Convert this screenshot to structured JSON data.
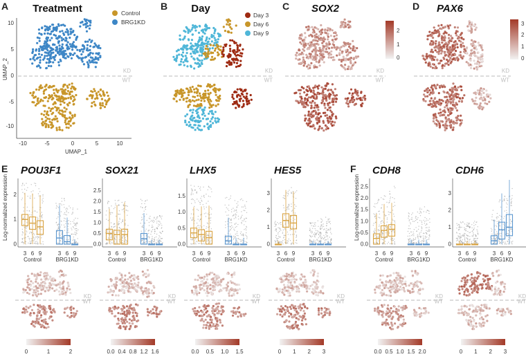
{
  "colors": {
    "control": "#c8962a",
    "brg1kd": "#3d86c6",
    "day3": "#9e2a12",
    "day6": "#c8962a",
    "day9": "#4fb6d8",
    "expr_low": "#eeeeee",
    "expr_high": "#a33a28",
    "box_control": "#d9a443",
    "box_kd": "#5c97cf",
    "dashed": "#c6c6c6"
  },
  "panels": {
    "A": {
      "label": "A",
      "title": "Treatment",
      "xlabel": "UMAP_1",
      "ylabel": "UMAP_2",
      "xticks": [
        "-10",
        "-5",
        "0",
        "5",
        "10"
      ],
      "yticks": [
        "10",
        "5",
        "0",
        "-5",
        "-10"
      ],
      "legend": [
        "Control",
        "BRG1KD"
      ]
    },
    "B": {
      "label": "B",
      "title": "Day",
      "legend": [
        "Day 3",
        "Day 6",
        "Day 9"
      ]
    },
    "C": {
      "label": "C",
      "gene": "SOX2",
      "scale": [
        "2",
        "1",
        "0"
      ]
    },
    "D": {
      "label": "D",
      "gene": "PAX6",
      "scale": [
        "3",
        "2",
        "1",
        "0"
      ]
    },
    "E": {
      "label": "E",
      "ylabel": "Log-normalized expression"
    },
    "F": {
      "label": "F",
      "ylabel": "Log-normalized expression"
    }
  },
  "split_labels": {
    "kd": "KD",
    "wt": "WT"
  },
  "chart_data": [
    {
      "type": "box",
      "gene": "POU3F1",
      "panel": "E",
      "groups": [
        "Control",
        "BRG1KD"
      ],
      "days": [
        "3",
        "6",
        "9"
      ],
      "yticks": [
        "0",
        "1",
        "2"
      ],
      "ylim": [
        0,
        2.6
      ],
      "control": [
        {
          "q1": 0.75,
          "median": 1.0,
          "q3": 1.2
        },
        {
          "q1": 0.6,
          "median": 0.85,
          "q3": 1.1
        },
        {
          "q1": 0.4,
          "median": 0.7,
          "q3": 0.95
        }
      ],
      "brg1kd": [
        {
          "q1": 0.0,
          "median": 0.25,
          "q3": 0.55
        },
        {
          "q1": 0.0,
          "median": 0.1,
          "q3": 0.35
        },
        {
          "q1": 0.0,
          "median": 0.0,
          "q3": 0.0
        }
      ],
      "colorbar": [
        "0",
        "1",
        "2"
      ]
    },
    {
      "type": "box",
      "gene": "SOX21",
      "panel": "E",
      "groups": [
        "Control",
        "BRG1KD"
      ],
      "days": [
        "3",
        "6",
        "9"
      ],
      "yticks": [
        "0.0",
        "0.5",
        "1.0",
        "1.5",
        "2.0",
        "2.5"
      ],
      "ylim": [
        0,
        3.0
      ],
      "control": [
        {
          "q1": 0.2,
          "median": 0.5,
          "q3": 0.7
        },
        {
          "q1": 0.0,
          "median": 0.45,
          "q3": 0.65
        },
        {
          "q1": 0.0,
          "median": 0.45,
          "q3": 0.7
        }
      ],
      "brg1kd": [
        {
          "q1": 0.0,
          "median": 0.25,
          "q3": 0.5
        },
        {
          "q1": 0.0,
          "median": 0.0,
          "q3": 0.0
        },
        {
          "q1": 0.0,
          "median": 0.0,
          "q3": 0.0
        }
      ],
      "colorbar": [
        "0.0",
        "0.4",
        "0.8",
        "1.2",
        "1.6"
      ]
    },
    {
      "type": "box",
      "gene": "LHX5",
      "panel": "E",
      "groups": [
        "Control",
        "BRG1KD"
      ],
      "days": [
        "3",
        "6",
        "9"
      ],
      "yticks": [
        "0.0",
        "0.5",
        "1.0",
        "1.5"
      ],
      "ylim": [
        0,
        2.0
      ],
      "control": [
        {
          "q1": 0.2,
          "median": 0.35,
          "q3": 0.5
        },
        {
          "q1": 0.1,
          "median": 0.3,
          "q3": 0.45
        },
        {
          "q1": 0.0,
          "median": 0.2,
          "q3": 0.4
        }
      ],
      "brg1kd": [
        {
          "q1": 0.0,
          "median": 0.1,
          "q3": 0.25
        },
        {
          "q1": 0.0,
          "median": 0.0,
          "q3": 0.0
        },
        {
          "q1": 0.0,
          "median": 0.0,
          "q3": 0.0
        }
      ],
      "colorbar": [
        "0.0",
        "0.5",
        "1.0",
        "1.5"
      ]
    },
    {
      "type": "box",
      "gene": "HES5",
      "panel": "E",
      "groups": [
        "Control",
        "BRG1KD"
      ],
      "days": [
        "3",
        "6",
        "9"
      ],
      "yticks": [
        "0",
        "1",
        "2",
        "3"
      ],
      "ylim": [
        0,
        3.8
      ],
      "control": [
        {
          "q1": 0.0,
          "median": 0.0,
          "q3": 0.0
        },
        {
          "q1": 1.0,
          "median": 1.4,
          "q3": 1.8
        },
        {
          "q1": 0.9,
          "median": 1.25,
          "q3": 1.7
        }
      ],
      "brg1kd": [
        {
          "q1": 0.0,
          "median": 0.0,
          "q3": 0.0
        },
        {
          "q1": 0.0,
          "median": 0.0,
          "q3": 0.0
        },
        {
          "q1": 0.0,
          "median": 0.0,
          "q3": 0.0
        }
      ],
      "colorbar": [
        "0",
        "1",
        "2",
        "3"
      ]
    },
    {
      "type": "box",
      "gene": "CDH8",
      "panel": "F",
      "groups": [
        "Control",
        "BRG1KD"
      ],
      "days": [
        "3",
        "6",
        "9"
      ],
      "yticks": [
        "0.0",
        "0.5",
        "1.0",
        "1.5",
        "2.0",
        "2.5"
      ],
      "ylim": [
        0,
        2.8
      ],
      "control": [
        {
          "q1": 0.0,
          "median": 0.25,
          "q3": 0.45
        },
        {
          "q1": 0.3,
          "median": 0.6,
          "q3": 0.8
        },
        {
          "q1": 0.35,
          "median": 0.65,
          "q3": 0.85
        }
      ],
      "brg1kd": [
        {
          "q1": 0.0,
          "median": 0.0,
          "q3": 0.0
        },
        {
          "q1": 0.0,
          "median": 0.0,
          "q3": 0.0
        },
        {
          "q1": 0.0,
          "median": 0.0,
          "q3": 0.0
        }
      ],
      "colorbar": [
        "0.0",
        "0.5",
        "1.0",
        "1.5",
        "2.0"
      ]
    },
    {
      "type": "box",
      "gene": "CDH6",
      "panel": "F",
      "groups": [
        "Control",
        "BRG1KD"
      ],
      "days": [
        "3",
        "6",
        "9"
      ],
      "yticks": [
        "0",
        "1",
        "2",
        "3"
      ],
      "ylim": [
        0,
        3.8
      ],
      "control": [
        {
          "q1": 0.0,
          "median": 0.0,
          "q3": 0.0
        },
        {
          "q1": 0.0,
          "median": 0.0,
          "q3": 0.0
        },
        {
          "q1": 0.0,
          "median": 0.0,
          "q3": 0.0
        }
      ],
      "brg1kd": [
        {
          "q1": 0.0,
          "median": 0.2,
          "q3": 0.5
        },
        {
          "q1": 0.3,
          "median": 0.85,
          "q3": 1.3
        },
        {
          "q1": 0.5,
          "median": 1.0,
          "q3": 1.75
        }
      ],
      "colorbar": [
        "0",
        "1",
        "2",
        "3"
      ]
    }
  ]
}
